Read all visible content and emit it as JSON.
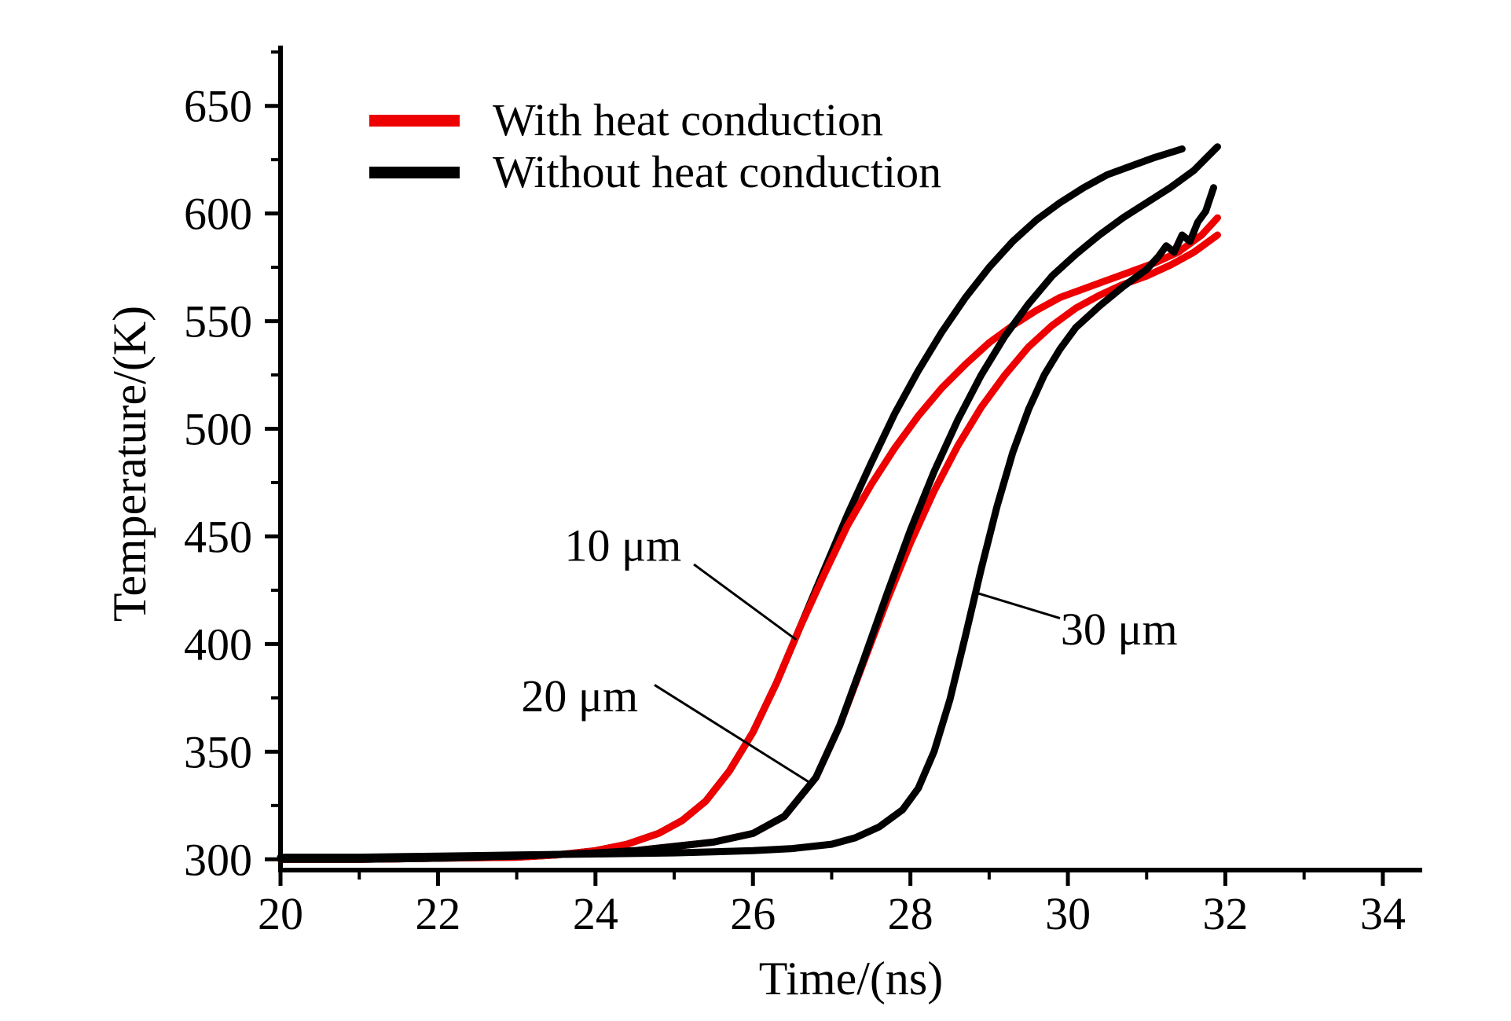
{
  "chart_data": {
    "type": "line",
    "title": "",
    "xlabel": "Time/(ns)",
    "ylabel": "Temperature/(K)",
    "xlim": [
      20,
      34.5
    ],
    "ylim": [
      295,
      678
    ],
    "x_major_ticks": [
      20,
      22,
      24,
      26,
      28,
      30,
      32,
      34
    ],
    "x_minor_ticks": [
      21,
      23,
      25,
      27,
      29,
      31,
      33
    ],
    "y_major_ticks": [
      300,
      350,
      400,
      450,
      500,
      550,
      600,
      650
    ],
    "y_minor_ticks": [
      325,
      375,
      425,
      475,
      525,
      575,
      625,
      675
    ],
    "grid": false,
    "colors": {
      "with_conduction": "#ee0000",
      "without_conduction": "#000000"
    },
    "legend": {
      "position": "top-left-inside",
      "entries": [
        {
          "label": "With heat conduction",
          "color": "#ee0000"
        },
        {
          "label": "Without heat conduction",
          "color": "#000000"
        }
      ]
    },
    "series": [
      {
        "name": "without-heat-conduction-10um",
        "legend": "Without heat conduction",
        "color": "#000000",
        "width": 9,
        "points": [
          [
            20,
            300
          ],
          [
            21,
            300
          ],
          [
            22,
            300.5
          ],
          [
            23,
            301
          ],
          [
            23.5,
            302
          ],
          [
            24,
            304
          ],
          [
            24.4,
            307
          ],
          [
            24.8,
            312
          ],
          [
            25.1,
            318
          ],
          [
            25.4,
            327
          ],
          [
            25.7,
            341
          ],
          [
            26,
            359
          ],
          [
            26.3,
            382
          ],
          [
            26.6,
            408
          ],
          [
            26.9,
            434
          ],
          [
            27.2,
            460
          ],
          [
            27.5,
            484
          ],
          [
            27.8,
            507
          ],
          [
            28.1,
            527
          ],
          [
            28.4,
            545
          ],
          [
            28.7,
            561
          ],
          [
            29,
            575
          ],
          [
            29.3,
            587
          ],
          [
            29.6,
            597
          ],
          [
            29.9,
            605
          ],
          [
            30.2,
            612
          ],
          [
            30.5,
            618
          ],
          [
            30.8,
            622
          ],
          [
            31.1,
            626
          ],
          [
            31.45,
            630
          ]
        ]
      },
      {
        "name": "with-heat-conduction-10um",
        "legend": "With heat conduction",
        "color": "#ee0000",
        "width": 9,
        "points": [
          [
            20,
            300
          ],
          [
            21,
            300
          ],
          [
            22,
            300.5
          ],
          [
            23,
            301
          ],
          [
            23.5,
            302
          ],
          [
            24,
            304
          ],
          [
            24.4,
            307
          ],
          [
            24.8,
            312
          ],
          [
            25.1,
            318
          ],
          [
            25.4,
            327
          ],
          [
            25.7,
            341
          ],
          [
            26,
            359
          ],
          [
            26.3,
            382
          ],
          [
            26.6,
            408
          ],
          [
            26.9,
            432
          ],
          [
            27.2,
            455
          ],
          [
            27.5,
            474
          ],
          [
            27.8,
            491
          ],
          [
            28.1,
            506
          ],
          [
            28.4,
            519
          ],
          [
            28.7,
            530
          ],
          [
            29,
            540
          ],
          [
            29.3,
            548
          ],
          [
            29.6,
            555
          ],
          [
            29.9,
            561
          ],
          [
            30.2,
            565
          ],
          [
            30.5,
            569
          ],
          [
            30.8,
            573
          ],
          [
            31.1,
            577
          ],
          [
            31.4,
            582
          ],
          [
            31.7,
            590
          ],
          [
            31.9,
            598
          ]
        ]
      },
      {
        "name": "with-heat-conduction-20um",
        "legend": "With heat conduction",
        "color": "#ee0000",
        "width": 9,
        "points": [
          [
            20,
            300
          ],
          [
            21,
            300
          ],
          [
            22,
            300.5
          ],
          [
            23,
            301.5
          ],
          [
            24,
            303
          ],
          [
            24.5,
            304
          ],
          [
            25,
            306
          ],
          [
            25.5,
            308
          ],
          [
            26,
            312
          ],
          [
            26.4,
            320
          ],
          [
            26.8,
            338
          ],
          [
            27.1,
            362
          ],
          [
            27.4,
            391
          ],
          [
            27.7,
            420
          ],
          [
            28,
            447
          ],
          [
            28.3,
            471
          ],
          [
            28.6,
            492
          ],
          [
            28.9,
            510
          ],
          [
            29.2,
            525
          ],
          [
            29.5,
            538
          ],
          [
            29.8,
            548
          ],
          [
            30.1,
            556
          ],
          [
            30.4,
            562
          ],
          [
            30.7,
            567
          ],
          [
            31,
            571
          ],
          [
            31.3,
            576
          ],
          [
            31.6,
            582
          ],
          [
            31.9,
            590
          ]
        ]
      },
      {
        "name": "without-heat-conduction-20um",
        "legend": "Without heat conduction",
        "color": "#000000",
        "width": 9,
        "points": [
          [
            20,
            300
          ],
          [
            21,
            300
          ],
          [
            22,
            300.5
          ],
          [
            23,
            301.5
          ],
          [
            24,
            303
          ],
          [
            24.5,
            304
          ],
          [
            25,
            306
          ],
          [
            25.5,
            308
          ],
          [
            26,
            312
          ],
          [
            26.4,
            320
          ],
          [
            26.8,
            338
          ],
          [
            27.1,
            362
          ],
          [
            27.4,
            392
          ],
          [
            27.7,
            423
          ],
          [
            28,
            453
          ],
          [
            28.3,
            480
          ],
          [
            28.6,
            504
          ],
          [
            28.9,
            525
          ],
          [
            29.2,
            543
          ],
          [
            29.5,
            558
          ],
          [
            29.8,
            571
          ],
          [
            30.1,
            581
          ],
          [
            30.4,
            590
          ],
          [
            30.7,
            598
          ],
          [
            31,
            605
          ],
          [
            31.3,
            612
          ],
          [
            31.6,
            620
          ],
          [
            31.9,
            631
          ]
        ]
      },
      {
        "name": "without-heat-conduction-30um",
        "legend": "Without heat conduction",
        "color": "#000000",
        "width": 9,
        "points": [
          [
            20,
            301
          ],
          [
            21,
            301
          ],
          [
            22,
            301.5
          ],
          [
            23,
            302
          ],
          [
            24,
            302.5
          ],
          [
            25,
            303
          ],
          [
            25.5,
            303.5
          ],
          [
            26,
            304
          ],
          [
            26.5,
            305
          ],
          [
            27,
            307
          ],
          [
            27.3,
            310
          ],
          [
            27.6,
            315
          ],
          [
            27.9,
            323
          ],
          [
            28.1,
            333
          ],
          [
            28.3,
            350
          ],
          [
            28.5,
            374
          ],
          [
            28.7,
            404
          ],
          [
            28.9,
            435
          ],
          [
            29.1,
            464
          ],
          [
            29.3,
            489
          ],
          [
            29.5,
            509
          ],
          [
            29.7,
            525
          ],
          [
            29.9,
            537
          ],
          [
            30.1,
            547
          ],
          [
            30.4,
            557
          ],
          [
            30.7,
            566
          ],
          [
            31,
            574
          ],
          [
            31.15,
            580
          ],
          [
            31.25,
            585
          ],
          [
            31.35,
            582
          ],
          [
            31.45,
            590
          ],
          [
            31.55,
            587
          ],
          [
            31.65,
            596
          ],
          [
            31.75,
            601
          ],
          [
            31.85,
            612
          ]
        ]
      }
    ],
    "annotations": [
      {
        "text": "10 μm",
        "label_pos": [
          24.35,
          446
        ],
        "line": [
          [
            25.25,
            437
          ],
          [
            26.55,
            402
          ]
        ]
      },
      {
        "text": "20 μm",
        "label_pos": [
          23.8,
          376
        ],
        "line": [
          [
            24.75,
            381
          ],
          [
            26.75,
            335
          ]
        ]
      },
      {
        "text": "30 μm",
        "label_pos": [
          30.65,
          407
        ],
        "line": [
          [
            29.9,
            412
          ],
          [
            28.82,
            424
          ]
        ]
      }
    ]
  }
}
